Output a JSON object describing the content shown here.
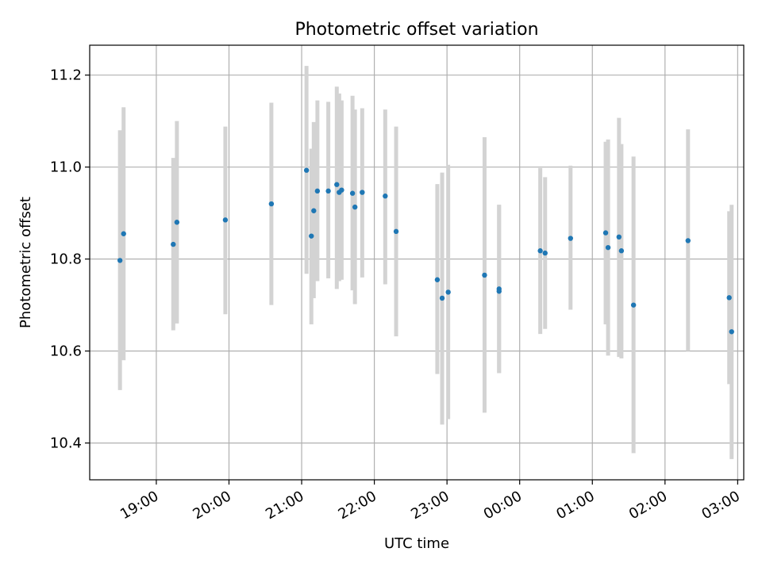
{
  "chart_data": {
    "type": "scatter",
    "title": "Photometric offset variation",
    "xlabel": "UTC time",
    "ylabel": "Photometric offset",
    "x_axis_type": "time",
    "x_start": "18:05",
    "x_end": "03:05",
    "xlim": [
      "18:05",
      "03:05"
    ],
    "ylim": [
      10.32,
      11.265
    ],
    "xticks": [
      "19:00",
      "20:00",
      "21:00",
      "22:00",
      "23:00",
      "00:00",
      "01:00",
      "02:00",
      "03:00"
    ],
    "yticks": [
      10.4,
      10.6,
      10.8,
      11.0,
      11.2
    ],
    "ytick_labels": [
      "10.4",
      "10.6",
      "10.8",
      "11.0",
      "11.2"
    ],
    "grid": true,
    "colors": {
      "point": "#1f77b4",
      "errorbar": "#d3d3d3",
      "grid": "#b0b0b0"
    },
    "series": [
      {
        "points": [
          {
            "x": "18:30",
            "y": 10.797,
            "ylo": 10.515,
            "yhi": 11.08
          },
          {
            "x": "18:33",
            "y": 10.855,
            "ylo": 10.58,
            "yhi": 11.13
          },
          {
            "x": "19:14",
            "y": 10.832,
            "ylo": 10.645,
            "yhi": 11.02
          },
          {
            "x": "19:17",
            "y": 10.88,
            "ylo": 10.66,
            "yhi": 11.1
          },
          {
            "x": "19:57",
            "y": 10.885,
            "ylo": 10.68,
            "yhi": 11.088
          },
          {
            "x": "20:35",
            "y": 10.92,
            "ylo": 10.7,
            "yhi": 11.14
          },
          {
            "x": "21:04",
            "y": 10.993,
            "ylo": 10.768,
            "yhi": 11.22
          },
          {
            "x": "21:08",
            "y": 10.85,
            "ylo": 10.658,
            "yhi": 11.04
          },
          {
            "x": "21:10",
            "y": 10.905,
            "ylo": 10.715,
            "yhi": 11.098
          },
          {
            "x": "21:13",
            "y": 10.948,
            "ylo": 10.752,
            "yhi": 11.145
          },
          {
            "x": "21:22",
            "y": 10.948,
            "ylo": 10.758,
            "yhi": 11.142
          },
          {
            "x": "21:29",
            "y": 10.962,
            "ylo": 10.735,
            "yhi": 11.175
          },
          {
            "x": "21:31",
            "y": 10.945,
            "ylo": 10.752,
            "yhi": 11.16
          },
          {
            "x": "21:33",
            "y": 10.95,
            "ylo": 10.755,
            "yhi": 11.145
          },
          {
            "x": "21:42",
            "y": 10.943,
            "ylo": 10.732,
            "yhi": 11.155
          },
          {
            "x": "21:44",
            "y": 10.913,
            "ylo": 10.702,
            "yhi": 11.125
          },
          {
            "x": "21:50",
            "y": 10.945,
            "ylo": 10.76,
            "yhi": 11.128
          },
          {
            "x": "22:09",
            "y": 10.937,
            "ylo": 10.745,
            "yhi": 11.125
          },
          {
            "x": "22:18",
            "y": 10.86,
            "ylo": 10.632,
            "yhi": 11.088
          },
          {
            "x": "22:52",
            "y": 10.755,
            "ylo": 10.55,
            "yhi": 10.963
          },
          {
            "x": "22:56",
            "y": 10.715,
            "ylo": 10.44,
            "yhi": 10.988
          },
          {
            "x": "23:01",
            "y": 10.728,
            "ylo": 10.452,
            "yhi": 11.005
          },
          {
            "x": "23:31",
            "y": 10.765,
            "ylo": 10.466,
            "yhi": 11.065
          },
          {
            "x": "23:43",
            "y": 10.735,
            "ylo": 10.552,
            "yhi": 10.918
          },
          {
            "x": "23:43",
            "y": 10.73,
            "ylo": 10.552,
            "yhi": 10.918
          },
          {
            "x": "00:17",
            "y": 10.818,
            "ylo": 10.637,
            "yhi": 10.998
          },
          {
            "x": "00:21",
            "y": 10.813,
            "ylo": 10.648,
            "yhi": 10.978
          },
          {
            "x": "00:42",
            "y": 10.845,
            "ylo": 10.69,
            "yhi": 11.003
          },
          {
            "x": "01:11",
            "y": 10.857,
            "ylo": 10.658,
            "yhi": 11.055
          },
          {
            "x": "01:13",
            "y": 10.825,
            "ylo": 10.59,
            "yhi": 11.06
          },
          {
            "x": "01:22",
            "y": 10.848,
            "ylo": 10.587,
            "yhi": 11.107
          },
          {
            "x": "01:24",
            "y": 10.818,
            "ylo": 10.584,
            "yhi": 11.05
          },
          {
            "x": "01:34",
            "y": 10.7,
            "ylo": 10.378,
            "yhi": 11.023
          },
          {
            "x": "02:19",
            "y": 10.84,
            "ylo": 10.6,
            "yhi": 11.082
          },
          {
            "x": "02:53",
            "y": 10.716,
            "ylo": 10.528,
            "yhi": 10.904
          },
          {
            "x": "02:55",
            "y": 10.642,
            "ylo": 10.365,
            "yhi": 10.918
          }
        ]
      }
    ]
  }
}
